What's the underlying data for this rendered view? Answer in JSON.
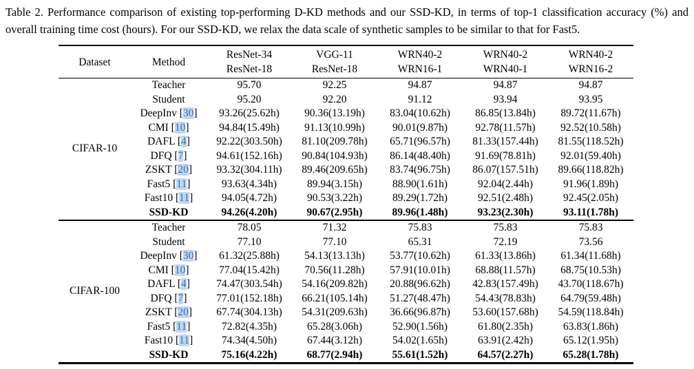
{
  "caption": "Table 2. Performance comparison of existing top-performing D-KD methods and our SSD-KD, in terms of top-1 classification accuracy (%) and overall training time cost (hours). For our SSD-KD, we relax the data scale of synthetic samples to be similar to that for Fast5.",
  "colors": {
    "citation_text": "#3d6db5",
    "citation_highlight": "#bdd7f2"
  },
  "table": {
    "header": {
      "dataset_label": "Dataset",
      "method_label": "Method",
      "model_pairs": [
        {
          "teacher": "ResNet-34",
          "student": "ResNet-18"
        },
        {
          "teacher": "VGG-11",
          "student": "ResNet-18"
        },
        {
          "teacher": "WRN40-2",
          "student": "WRN16-1"
        },
        {
          "teacher": "WRN40-2",
          "student": "WRN40-1"
        },
        {
          "teacher": "WRN40-2",
          "student": "WRN16-2"
        }
      ]
    },
    "blocks": [
      {
        "dataset": "CIFAR-10",
        "rows": [
          {
            "method": "Teacher",
            "cite": null,
            "bold": false,
            "values": [
              "95.70",
              "92.25",
              "94.87",
              "94.87",
              "94.87"
            ]
          },
          {
            "method": "Student",
            "cite": null,
            "bold": false,
            "values": [
              "95.20",
              "92.20",
              "91.12",
              "93.94",
              "93.95"
            ]
          },
          {
            "method": "DeepInv",
            "cite": "30",
            "bold": false,
            "values": [
              "93.26(25.62h)",
              "90.36(13.19h)",
              "83.04(10.62h)",
              "86.85(13.84h)",
              "89.72(11.67h)"
            ]
          },
          {
            "method": "CMI",
            "cite": "10",
            "bold": false,
            "values": [
              "94.84(15.49h)",
              "91.13(10.99h)",
              "90.01(9.87h)",
              "92.78(11.57h)",
              "92.52(10.58h)"
            ]
          },
          {
            "method": "DAFL",
            "cite": "4",
            "bold": false,
            "values": [
              "92.22(303.50h)",
              "81.10(209.78h)",
              "65.71(96.57h)",
              "81.33(157.44h)",
              "81.55(118.52h)"
            ]
          },
          {
            "method": "DFQ",
            "cite": "7",
            "bold": false,
            "values": [
              "94.61(152.16h)",
              "90.84(104.93h)",
              "86.14(48.40h)",
              "91.69(78.81h)",
              "92.01(59.40h)"
            ]
          },
          {
            "method": "ZSKT",
            "cite": "20",
            "bold": false,
            "values": [
              "93.32(304.11h)",
              "89.46(209.65h)",
              "83.74(96.75h)",
              "86.07(157.51h)",
              "89.66(118.82h)"
            ]
          },
          {
            "method": "Fast5",
            "cite": "11",
            "bold": false,
            "values": [
              "93.63(4.34h)",
              "89.94(3.15h)",
              "88.90(1.61h)",
              "92.04(2.44h)",
              "91.96(1.89h)"
            ]
          },
          {
            "method": "Fast10",
            "cite": "11",
            "bold": false,
            "values": [
              "94.05(4.72h)",
              "90.53(3.22h)",
              "89.29(1.72h)",
              "92.51(2.48h)",
              "92.45(2.05h)"
            ]
          },
          {
            "method": "SSD-KD",
            "cite": null,
            "bold": true,
            "values": [
              "94.26(4.20h)",
              "90.67(2.95h)",
              "89.96(1.48h)",
              "93.23(2.30h)",
              "93.11(1.78h)"
            ]
          }
        ]
      },
      {
        "dataset": "CIFAR-100",
        "rows": [
          {
            "method": "Teacher",
            "cite": null,
            "bold": false,
            "values": [
              "78.05",
              "71.32",
              "75.83",
              "75.83",
              "75.83"
            ]
          },
          {
            "method": "Student",
            "cite": null,
            "bold": false,
            "values": [
              "77.10",
              "77.10",
              "65.31",
              "72.19",
              "73.56"
            ]
          },
          {
            "method": "DeepInv",
            "cite": "30",
            "bold": false,
            "values": [
              "61.32(25.88h)",
              "54.13(13.13h)",
              "53.77(10.62h)",
              "61.33(13.86h)",
              "61.34(11.68h)"
            ]
          },
          {
            "method": "CMI",
            "cite": "10",
            "bold": false,
            "values": [
              "77.04(15.42h)",
              "70.56(11.28h)",
              "57.91(10.01h)",
              "68.88(11.57h)",
              "68.75(10.53h)"
            ]
          },
          {
            "method": "DAFL",
            "cite": "4",
            "bold": false,
            "values": [
              "74.47(303.54h)",
              "54.16(209.82h)",
              "20.88(96.62h)",
              "42.83(157.49h)",
              "43.70(118.67h)"
            ]
          },
          {
            "method": "DFQ",
            "cite": "7",
            "bold": false,
            "values": [
              "77.01(152.18h)",
              "66.21(105.14h)",
              "51.27(48.47h)",
              "54.43(78.83h)",
              "64.79(59.48h)"
            ]
          },
          {
            "method": "ZSKT",
            "cite": "20",
            "bold": false,
            "values": [
              "67.74(304.13h)",
              "54.31(209.63h)",
              "36.66(96.87h)",
              "53.60(157.68h)",
              "54.59(118.84h)"
            ]
          },
          {
            "method": "Fast5",
            "cite": "11",
            "bold": false,
            "values": [
              "72.82(4.35h)",
              "65.28(3.06h)",
              "52.90(1.56h)",
              "61.80(2.35h)",
              "63.83(1.86h)"
            ]
          },
          {
            "method": "Fast10",
            "cite": "11",
            "bold": false,
            "values": [
              "74.34(4.50h)",
              "67.44(3.12h)",
              "54.02(1.65h)",
              "63.91(2.42h)",
              "65.12(1.95h)"
            ]
          },
          {
            "method": "SSD-KD",
            "cite": null,
            "bold": true,
            "values": [
              "75.16(4.22h)",
              "68.77(2.94h)",
              "55.61(1.52h)",
              "64.57(2.27h)",
              "65.28(1.78h)"
            ]
          }
        ]
      }
    ]
  }
}
